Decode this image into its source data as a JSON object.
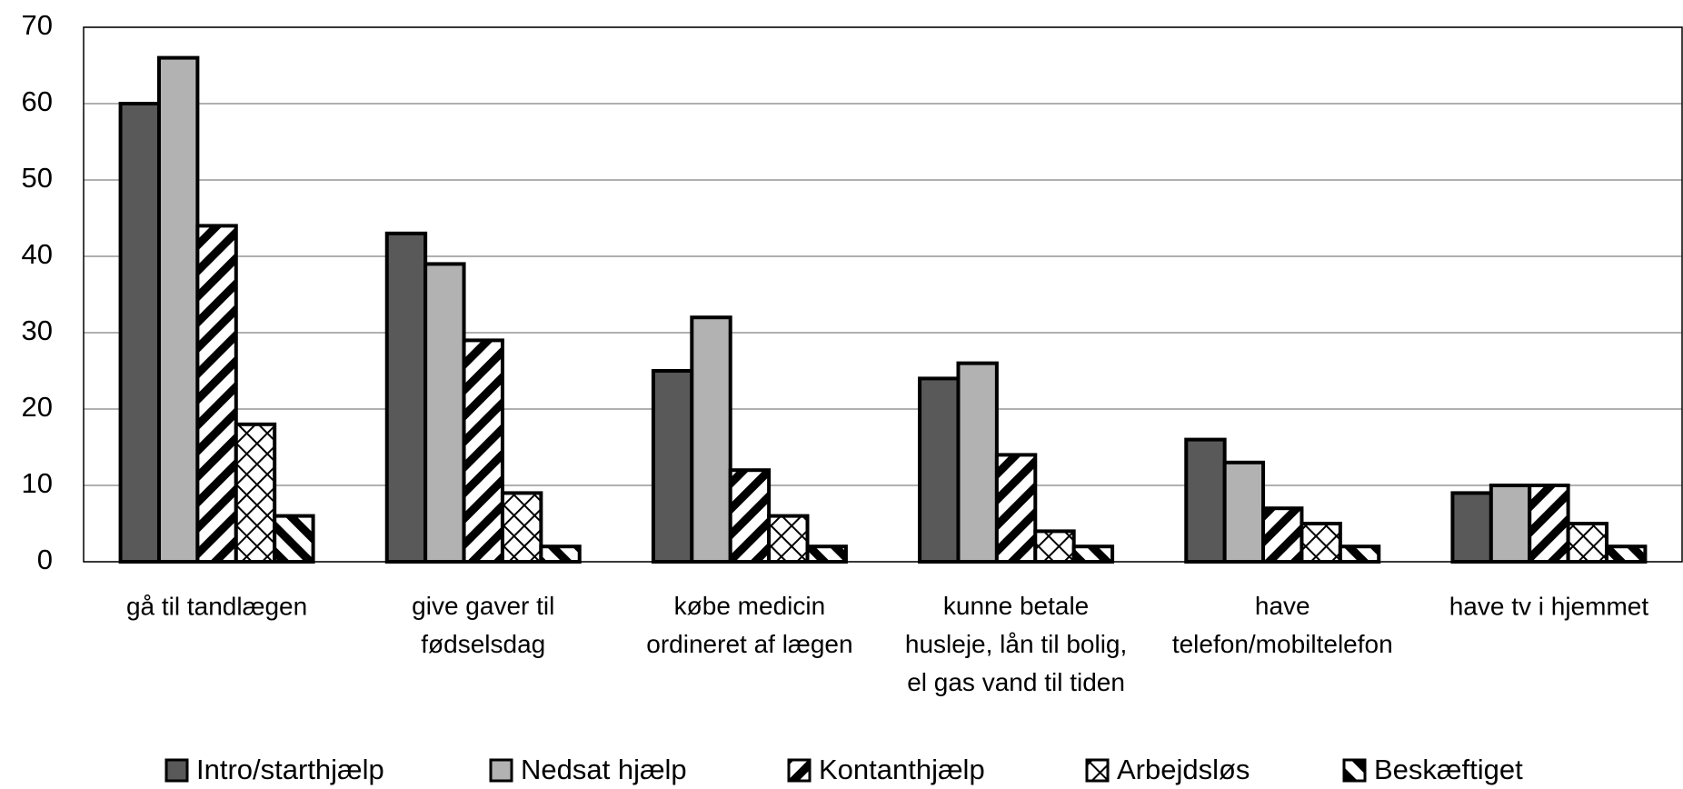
{
  "chart_data": {
    "type": "bar",
    "categories": [
      "gå til tandlægen",
      "give gaver til\nfødselsdag",
      "købe medicin\nordineret af lægen",
      "kunne betale\nhusleje, lån til bolig,\nel gas vand til tiden",
      "have\ntelefon/mobiltelefon",
      "have tv i hjemmet"
    ],
    "series": [
      {
        "name": "Intro/starthjælp",
        "color": "#595959",
        "pattern": "solid",
        "values": [
          60,
          43,
          25,
          24,
          16,
          9
        ]
      },
      {
        "name": "Nedsat hjælp",
        "color": "#b2b2b2",
        "pattern": "solid",
        "values": [
          66,
          39,
          32,
          26,
          13,
          10
        ]
      },
      {
        "name": "Kontanthjælp",
        "color": "#000000",
        "pattern": "diagonal",
        "values": [
          44,
          29,
          12,
          14,
          7,
          10
        ]
      },
      {
        "name": "Arbejdsløs",
        "color": "#000000",
        "pattern": "cross",
        "values": [
          18,
          9,
          6,
          4,
          5,
          5
        ]
      },
      {
        "name": "Beskæftiget",
        "color": "#000000",
        "pattern": "diagonal-reverse",
        "values": [
          6,
          2,
          2,
          2,
          2,
          2
        ]
      }
    ],
    "ylim": [
      0,
      70
    ],
    "yticks": [
      0,
      10,
      20,
      30,
      40,
      50,
      60,
      70
    ],
    "grid": true,
    "legend": "bottom"
  }
}
